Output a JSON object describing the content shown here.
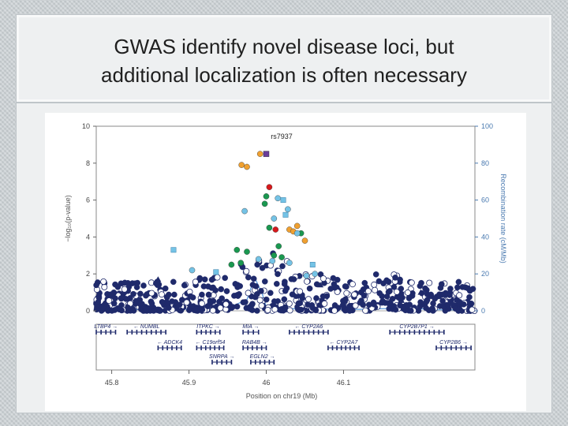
{
  "slide": {
    "title_line1": "GWAS identify novel disease loci, but",
    "title_line2": "additional localization is often necessary"
  },
  "chart_data": {
    "type": "scatter",
    "title": "rs7937",
    "xlabel": "Position on chr19 (Mb)",
    "ylabel": "−log₁₀(p-value)",
    "y2label": "Recombination rate (cM/Mb)",
    "xlim": [
      45.78,
      46.27
    ],
    "ylim": [
      0,
      10
    ],
    "y2lim": [
      0,
      100
    ],
    "xticks": [
      "45.8",
      "45.9",
      "46",
      "46.1"
    ],
    "yticks": [
      "0",
      "2",
      "4",
      "6",
      "8",
      "10"
    ],
    "y2ticks": [
      "0",
      "20",
      "40",
      "60",
      "80",
      "100"
    ],
    "colors": {
      "lead": "#6a3d9a",
      "r2_high": "#d7191c",
      "r2_mid_high": "#f0a030",
      "r2_mid": "#1a9850",
      "r2_low": "#74c3e6",
      "r2_none": "#1f2a6b",
      "recomb_line": "#4a90d9"
    },
    "lead_snp": {
      "x": 46.0,
      "y": 8.5
    },
    "highlighted_points": [
      {
        "x": 45.968,
        "y": 7.9,
        "r2": "r2_mid_high"
      },
      {
        "x": 45.975,
        "y": 7.8,
        "r2": "r2_mid_high"
      },
      {
        "x": 45.992,
        "y": 8.5,
        "r2": "r2_mid_high"
      },
      {
        "x": 46.004,
        "y": 6.7,
        "r2": "r2_high"
      },
      {
        "x": 46.012,
        "y": 4.4,
        "r2": "r2_high"
      },
      {
        "x": 46.0,
        "y": 6.2,
        "r2": "r2_mid"
      },
      {
        "x": 45.998,
        "y": 5.8,
        "r2": "r2_mid"
      },
      {
        "x": 46.004,
        "y": 4.5,
        "r2": "r2_mid"
      },
      {
        "x": 45.962,
        "y": 3.3,
        "r2": "r2_mid"
      },
      {
        "x": 45.967,
        "y": 2.6,
        "r2": "r2_mid"
      },
      {
        "x": 45.955,
        "y": 2.5,
        "r2": "r2_mid"
      },
      {
        "x": 46.02,
        "y": 2.9,
        "r2": "r2_mid"
      },
      {
        "x": 46.045,
        "y": 4.2,
        "r2": "r2_mid"
      },
      {
        "x": 46.01,
        "y": 3.0,
        "r2": "r2_mid"
      },
      {
        "x": 45.975,
        "y": 3.2,
        "r2": "r2_mid"
      },
      {
        "x": 46.016,
        "y": 3.5,
        "r2": "r2_mid"
      },
      {
        "x": 46.04,
        "y": 4.6,
        "r2": "r2_mid_high"
      },
      {
        "x": 46.03,
        "y": 4.4,
        "r2": "r2_mid_high"
      },
      {
        "x": 46.05,
        "y": 3.8,
        "r2": "r2_mid_high"
      },
      {
        "x": 46.035,
        "y": 4.3,
        "r2": "r2_mid_high"
      },
      {
        "x": 46.015,
        "y": 6.1,
        "r2": "r2_low"
      },
      {
        "x": 46.022,
        "y": 6.0,
        "r2": "r2_low"
      },
      {
        "x": 46.028,
        "y": 5.5,
        "r2": "r2_low"
      },
      {
        "x": 45.972,
        "y": 5.4,
        "r2": "r2_low"
      },
      {
        "x": 46.025,
        "y": 5.2,
        "r2": "r2_low"
      },
      {
        "x": 46.04,
        "y": 4.2,
        "r2": "r2_low"
      },
      {
        "x": 46.01,
        "y": 5.0,
        "r2": "r2_low"
      },
      {
        "x": 45.935,
        "y": 2.1,
        "r2": "r2_low"
      },
      {
        "x": 45.99,
        "y": 2.8,
        "r2": "r2_low"
      },
      {
        "x": 46.008,
        "y": 2.7,
        "r2": "r2_low"
      },
      {
        "x": 46.06,
        "y": 2.5,
        "r2": "r2_low"
      },
      {
        "x": 46.052,
        "y": 1.9,
        "r2": "r2_low"
      },
      {
        "x": 46.03,
        "y": 2.6,
        "r2": "r2_low"
      },
      {
        "x": 45.88,
        "y": 3.3,
        "r2": "r2_low"
      },
      {
        "x": 45.904,
        "y": 2.2,
        "r2": "r2_low"
      },
      {
        "x": 46.063,
        "y": 2.0,
        "r2": "r2_low"
      }
    ],
    "recombination": [
      [
        45.78,
        0.5
      ],
      [
        45.85,
        0.8
      ],
      [
        45.9,
        1.0
      ],
      [
        45.95,
        1.5
      ],
      [
        45.975,
        6
      ],
      [
        45.985,
        18
      ],
      [
        45.995,
        9
      ],
      [
        46.0,
        2
      ],
      [
        46.04,
        1
      ],
      [
        46.12,
        0.8
      ],
      [
        46.18,
        1.5
      ],
      [
        46.22,
        0.6
      ],
      [
        46.27,
        0.5
      ]
    ],
    "genes": [
      {
        "name": "LTBP4",
        "start": 45.78,
        "end": 45.805,
        "row": 1,
        "dir": "right"
      },
      {
        "name": "NUMBL",
        "start": 45.82,
        "end": 45.87,
        "row": 1,
        "dir": "left"
      },
      {
        "name": "ITPKC",
        "start": 45.91,
        "end": 45.94,
        "row": 1,
        "dir": "right"
      },
      {
        "name": "MIA",
        "start": 45.97,
        "end": 45.99,
        "row": 1,
        "dir": "right"
      },
      {
        "name": "CYP2A6",
        "start": 46.03,
        "end": 46.08,
        "row": 1,
        "dir": "left"
      },
      {
        "name": "CYP2B7P1",
        "start": 46.16,
        "end": 46.23,
        "row": 1,
        "dir": "right"
      },
      {
        "name": "ADCK4",
        "start": 45.86,
        "end": 45.89,
        "row": 2,
        "dir": "left"
      },
      {
        "name": "C19orf54",
        "start": 45.91,
        "end": 45.945,
        "row": 2,
        "dir": "left"
      },
      {
        "name": "RAB4B",
        "start": 45.97,
        "end": 46.0,
        "row": 2,
        "dir": "right"
      },
      {
        "name": "CYP2A7",
        "start": 46.08,
        "end": 46.12,
        "row": 2,
        "dir": "left"
      },
      {
        "name": "CYP2B6",
        "start": 46.22,
        "end": 46.265,
        "row": 2,
        "dir": "right"
      },
      {
        "name": "SNRPA",
        "start": 45.93,
        "end": 45.955,
        "row": 3,
        "dir": "right"
      },
      {
        "name": "EGLN2",
        "start": 45.98,
        "end": 46.01,
        "row": 3,
        "dir": "right"
      }
    ]
  }
}
